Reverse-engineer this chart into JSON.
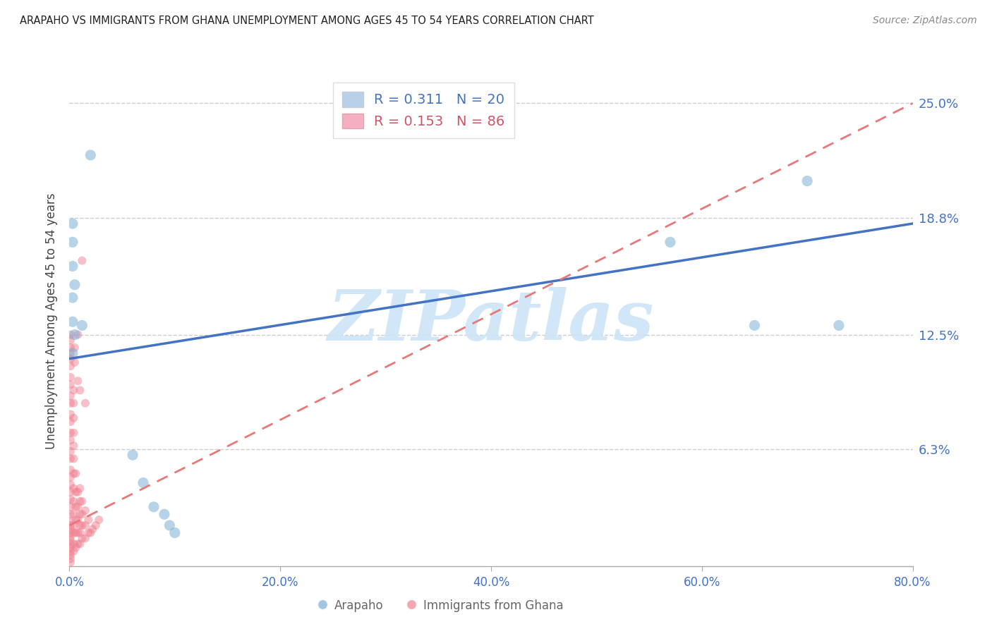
{
  "title": "ARAPAHO VS IMMIGRANTS FROM GHANA UNEMPLOYMENT AMONG AGES 45 TO 54 YEARS CORRELATION CHART",
  "source": "Source: ZipAtlas.com",
  "ylabel": "Unemployment Among Ages 45 to 54 years",
  "xlim": [
    0.0,
    0.8
  ],
  "ylim": [
    0.0,
    0.265
  ],
  "xtick_values": [
    0.0,
    0.2,
    0.4,
    0.6,
    0.8
  ],
  "xtick_labels": [
    "0.0%",
    "20.0%",
    "40.0%",
    "60.0%",
    "80.0%"
  ],
  "ytick_values": [
    0.063,
    0.125,
    0.188,
    0.25
  ],
  "ytick_labels": [
    "6.3%",
    "12.5%",
    "18.8%",
    "25.0%"
  ],
  "arapaho_color": "#7bafd4",
  "ghana_color": "#f08090",
  "blue_line_color": "#4472c4",
  "pink_line_color": "#e87878",
  "watermark": "ZIPatlas",
  "watermark_color": "#cce4f5",
  "grid_color": "#cccccc",
  "title_color": "#222222",
  "source_color": "#888888",
  "tick_label_color": "#4472c4",
  "ylabel_color": "#444444",
  "arapaho_R": "0.311",
  "arapaho_N": "20",
  "ghana_R": "0.153",
  "ghana_N": "86",
  "arapaho_line": [
    0.0,
    0.8,
    0.112,
    0.185
  ],
  "ghana_line": [
    0.0,
    0.8,
    0.022,
    0.25
  ],
  "arapaho_points_x": [
    0.02,
    0.003,
    0.003,
    0.003,
    0.005,
    0.003,
    0.003,
    0.012,
    0.005,
    0.003,
    0.06,
    0.07,
    0.08,
    0.09,
    0.095,
    0.1,
    0.57,
    0.65,
    0.7,
    0.73
  ],
  "arapaho_points_y": [
    0.222,
    0.185,
    0.175,
    0.162,
    0.152,
    0.145,
    0.132,
    0.13,
    0.125,
    0.115,
    0.06,
    0.045,
    0.032,
    0.028,
    0.022,
    0.018,
    0.175,
    0.13,
    0.208,
    0.13
  ],
  "ghana_points_x": [
    0.001,
    0.001,
    0.001,
    0.001,
    0.001,
    0.001,
    0.001,
    0.001,
    0.001,
    0.001,
    0.001,
    0.001,
    0.001,
    0.001,
    0.001,
    0.001,
    0.001,
    0.001,
    0.001,
    0.001,
    0.001,
    0.001,
    0.001,
    0.001,
    0.001,
    0.001,
    0.001,
    0.001,
    0.001,
    0.001,
    0.001,
    0.001,
    0.001,
    0.001,
    0.001,
    0.004,
    0.004,
    0.004,
    0.004,
    0.004,
    0.004,
    0.004,
    0.004,
    0.004,
    0.004,
    0.004,
    0.004,
    0.004,
    0.004,
    0.006,
    0.006,
    0.006,
    0.006,
    0.006,
    0.006,
    0.008,
    0.008,
    0.008,
    0.008,
    0.008,
    0.01,
    0.01,
    0.01,
    0.01,
    0.01,
    0.01,
    0.012,
    0.012,
    0.012,
    0.012,
    0.015,
    0.015,
    0.015,
    0.018,
    0.018,
    0.02,
    0.022,
    0.025,
    0.028,
    0.012,
    0.008,
    0.005,
    0.005,
    0.008,
    0.01,
    0.015
  ],
  "ghana_points_y": [
    0.002,
    0.004,
    0.006,
    0.008,
    0.01,
    0.012,
    0.014,
    0.016,
    0.018,
    0.02,
    0.022,
    0.024,
    0.028,
    0.032,
    0.036,
    0.04,
    0.044,
    0.048,
    0.052,
    0.058,
    0.062,
    0.068,
    0.072,
    0.078,
    0.082,
    0.088,
    0.092,
    0.098,
    0.102,
    0.108,
    0.112,
    0.115,
    0.118,
    0.122,
    0.125,
    0.008,
    0.012,
    0.018,
    0.022,
    0.028,
    0.035,
    0.042,
    0.05,
    0.058,
    0.065,
    0.072,
    0.08,
    0.088,
    0.095,
    0.01,
    0.018,
    0.025,
    0.032,
    0.04,
    0.05,
    0.012,
    0.018,
    0.025,
    0.032,
    0.04,
    0.012,
    0.018,
    0.022,
    0.028,
    0.035,
    0.042,
    0.015,
    0.022,
    0.028,
    0.035,
    0.015,
    0.022,
    0.03,
    0.018,
    0.025,
    0.018,
    0.02,
    0.022,
    0.025,
    0.165,
    0.125,
    0.11,
    0.118,
    0.1,
    0.095,
    0.088
  ]
}
